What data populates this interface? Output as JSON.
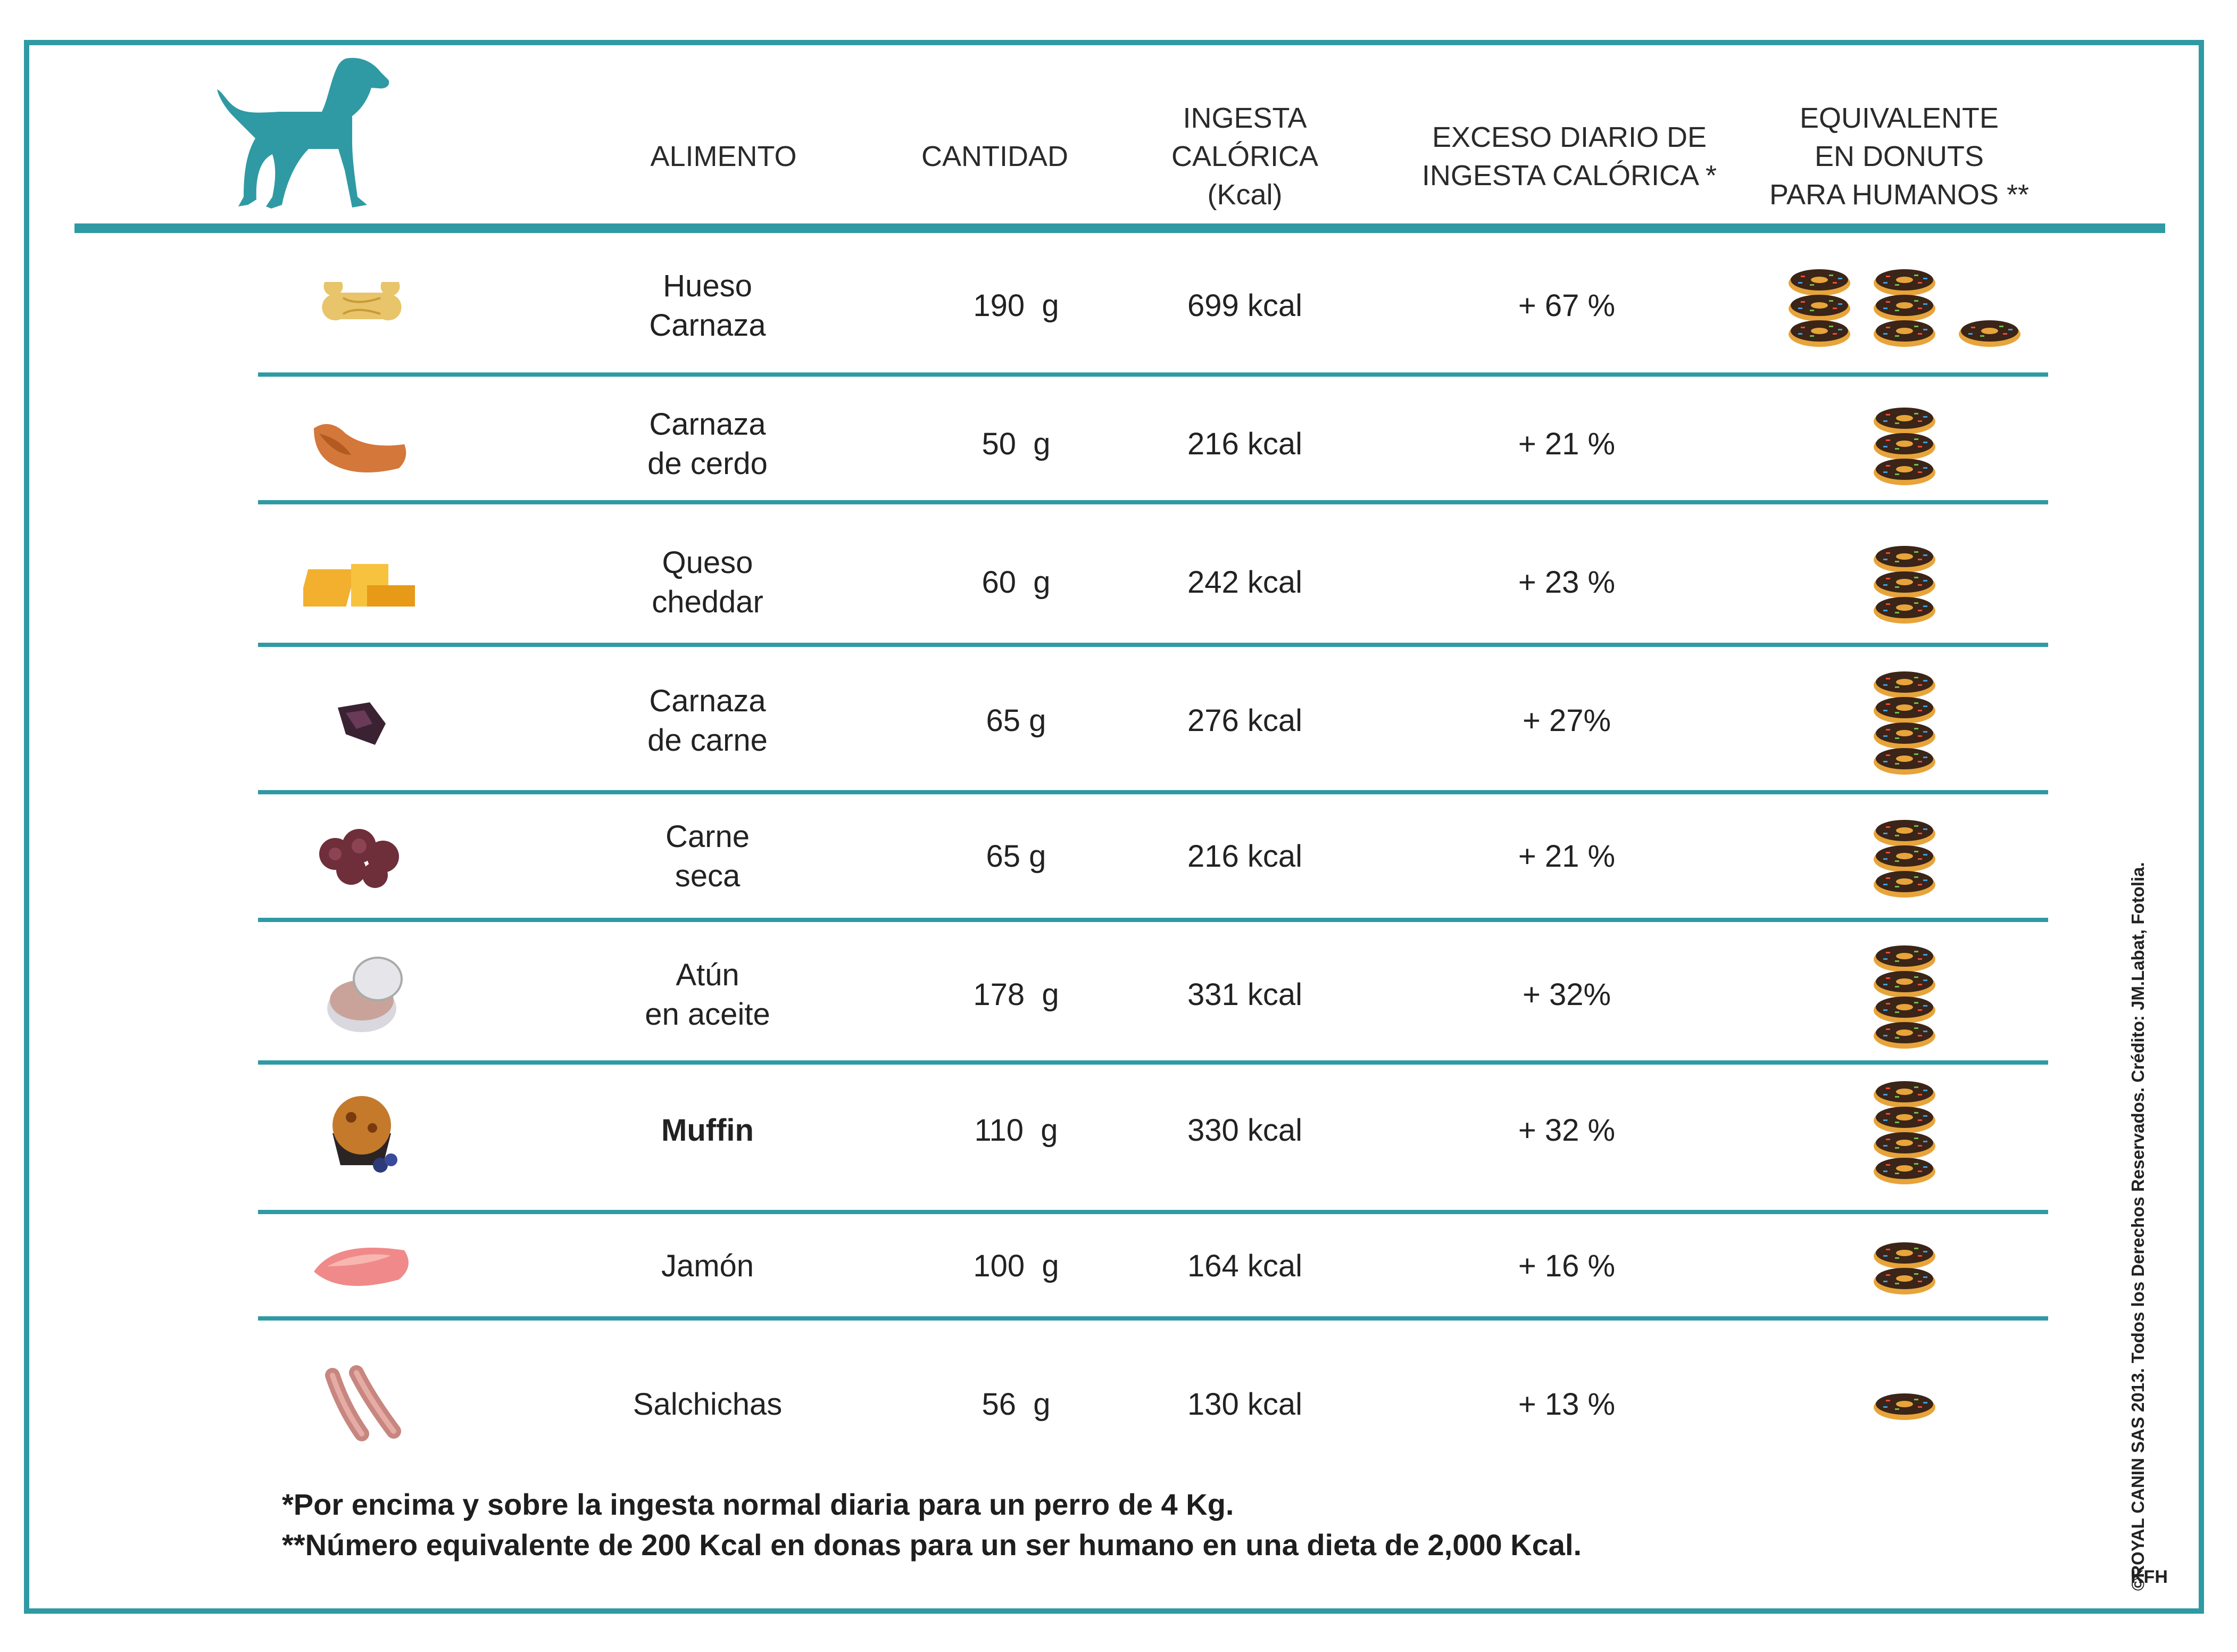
{
  "header": {
    "alimento": "ALIMENTO",
    "cantidad": "CANTIDAD",
    "ingesta": [
      "INGESTA",
      "CALÓRICA",
      "(Kcal)"
    ],
    "exceso": [
      "EXCESO DIARIO DE",
      "INGESTA CALÓRICA *"
    ],
    "equivalente": [
      "EQUIVALENTE",
      "EN DONUTS",
      "PARA HUMANOS **"
    ]
  },
  "icons": {
    "logo": "dog-silhouette-icon",
    "donut": "donut-icon"
  },
  "colors": {
    "accent": "#2f9aa3"
  },
  "rows": [
    {
      "name": [
        "Hueso",
        "Carnaza"
      ],
      "qty": "190  g",
      "kcal": "699 kcal",
      "pct": "+ 67 %",
      "donut_stacks": [
        3,
        3,
        1
      ],
      "food_icon": "bone-icon"
    },
    {
      "name": [
        "Carnaza",
        "de cerdo"
      ],
      "qty": "50  g",
      "kcal": "216 kcal",
      "pct": "+ 21 %",
      "donut_stacks": [
        3
      ],
      "food_icon": "pork-rawhide-icon"
    },
    {
      "name": [
        "Queso",
        "cheddar"
      ],
      "qty": "60  g",
      "kcal": "242 kcal",
      "pct": "+ 23 %",
      "donut_stacks": [
        3
      ],
      "food_icon": "cheese-icon"
    },
    {
      "name": [
        "Carnaza",
        "de carne"
      ],
      "qty": "65 g",
      "kcal": "276 kcal",
      "pct": "+ 27%",
      "donut_stacks": [
        4
      ],
      "food_icon": "beef-rawhide-icon"
    },
    {
      "name": [
        "Carne",
        "seca"
      ],
      "qty": "65 g",
      "kcal": "216 kcal",
      "pct": "+ 21 %",
      "donut_stacks": [
        3
      ],
      "food_icon": "jerky-icon"
    },
    {
      "name": [
        "Atún",
        "en aceite"
      ],
      "qty": "178  g",
      "kcal": "331 kcal",
      "pct": "+ 32%",
      "donut_stacks": [
        4
      ],
      "food_icon": "tuna-can-icon"
    },
    {
      "name": [
        "Muffin"
      ],
      "qty": "110  g",
      "kcal": "330 kcal",
      "pct": "+ 32 %",
      "donut_stacks": [
        4
      ],
      "food_icon": "muffin-icon"
    },
    {
      "name": [
        "Jamón"
      ],
      "qty": "100  g",
      "kcal": "164 kcal",
      "pct": "+ 16 %",
      "donut_stacks": [
        2
      ],
      "food_icon": "ham-icon"
    },
    {
      "name": [
        "Salchichas"
      ],
      "qty": "56  g",
      "kcal": "130 kcal",
      "pct": "+ 13 %",
      "donut_stacks": [
        1
      ],
      "food_icon": "sausages-icon"
    }
  ],
  "footnotes": [
    "*Por encima y sobre la ingesta normal diaria para un perro de 4 Kg.",
    "**Número equivalente de 200 Kcal en donas para un ser humano en una dieta de 2,000 Kcal."
  ],
  "credit": "©ROYAL CANIN SAS 2013. Todos los Derechos Reservados. Crédito: JM.Labat, Fotolia.",
  "brand": "KFH"
}
